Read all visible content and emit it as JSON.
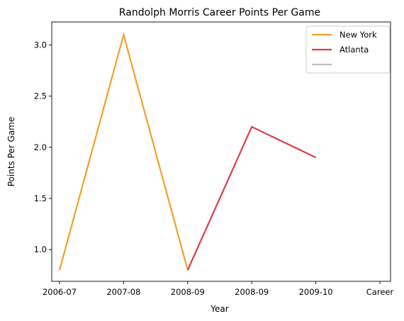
{
  "chart_data": {
    "type": "line",
    "title": "Randolph Morris Career Points Per Game",
    "xlabel": "Year",
    "ylabel": "Points Per Game",
    "categories": [
      "2006-07",
      "2007-08",
      "2008-09",
      "2008-09",
      "2009-10",
      "Career"
    ],
    "series": [
      {
        "name": "New York",
        "color": "#f5a02a",
        "points": [
          [
            0,
            0.8
          ],
          [
            1,
            3.1
          ],
          [
            2,
            0.8
          ]
        ]
      },
      {
        "name": "Atlanta",
        "color": "#d9404a",
        "points": [
          [
            2,
            0.8
          ],
          [
            3,
            2.2
          ],
          [
            4,
            1.9
          ]
        ]
      },
      {
        "name": "",
        "color": "#c0c0c0",
        "points": []
      }
    ],
    "yticks": [
      "1.0",
      "1.5",
      "2.0",
      "2.5",
      "3.0"
    ],
    "ylim": [
      0.69,
      3.225
    ],
    "grid": false,
    "legend_position": "top-right"
  }
}
